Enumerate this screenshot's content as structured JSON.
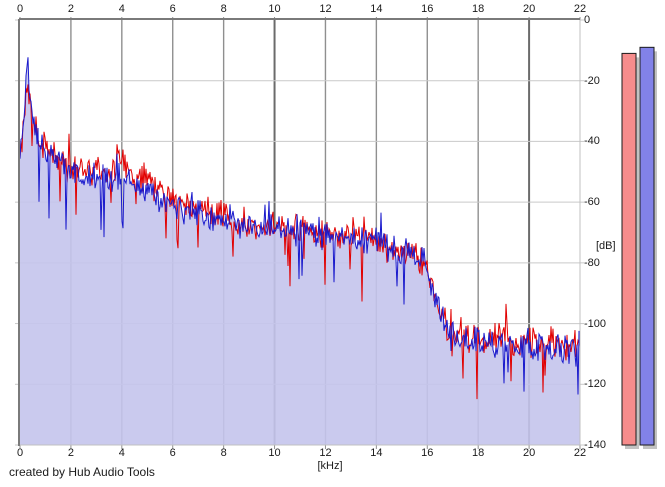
{
  "app": {
    "credit": "created by Hub Audio Tools"
  },
  "chart_data": {
    "type": "line",
    "title": "",
    "xlabel": "[kHz]",
    "ylabel": "[dB]",
    "xlim": [
      0,
      22
    ],
    "ylim": [
      -140,
      0
    ],
    "grid": true,
    "x_ticks": [
      0,
      2,
      4,
      6,
      8,
      10,
      12,
      14,
      16,
      18,
      20,
      22
    ],
    "x_major_ticks": [
      10,
      20
    ],
    "y_ticks": [
      0,
      -20,
      -40,
      -60,
      -80,
      -100,
      -120,
      -140
    ],
    "colors": {
      "red_trace": "#e10000",
      "blue_trace": "#1a1acc",
      "area_fill": "#c4c4ec",
      "grid_vertical": "#8f8f8f",
      "grid_vertical_major": "#6b6b6b",
      "grid_horizontal": "#c9c9c9",
      "frame_dark": "#7a7a7a",
      "frame_light": "#c0c0c0",
      "meter_shadow": "#c2c2c2",
      "meter_border": "#1a1a1a"
    },
    "series": [
      {
        "name": "red-spectrum-trace",
        "color": "#e10000",
        "noise_db": 6,
        "seed": 42,
        "envelope": [
          [
            0,
            -46
          ],
          [
            0.15,
            -33
          ],
          [
            0.3,
            -22
          ],
          [
            0.5,
            -34
          ],
          [
            0.8,
            -41
          ],
          [
            1,
            -42
          ],
          [
            1.5,
            -45
          ],
          [
            2,
            -47
          ],
          [
            2.5,
            -49
          ],
          [
            3,
            -50
          ],
          [
            3.5,
            -51
          ],
          [
            4,
            -47
          ],
          [
            4.5,
            -52
          ],
          [
            5,
            -54
          ],
          [
            5.5,
            -56
          ],
          [
            6,
            -58
          ],
          [
            6.5,
            -61
          ],
          [
            7,
            -62
          ],
          [
            7.5,
            -64
          ],
          [
            8,
            -65
          ],
          [
            8.5,
            -66
          ],
          [
            9,
            -67
          ],
          [
            9.5,
            -67
          ],
          [
            10,
            -68
          ],
          [
            11,
            -69
          ],
          [
            12,
            -70
          ],
          [
            13,
            -71
          ],
          [
            14,
            -73
          ],
          [
            14.5,
            -75
          ],
          [
            15,
            -76
          ],
          [
            15.5,
            -78
          ],
          [
            15.9,
            -80
          ],
          [
            16.2,
            -87
          ],
          [
            16.5,
            -96
          ],
          [
            16.8,
            -102
          ],
          [
            17,
            -104
          ],
          [
            18,
            -105
          ],
          [
            19,
            -105
          ],
          [
            20,
            -106
          ],
          [
            21,
            -106
          ],
          [
            22,
            -108
          ]
        ]
      },
      {
        "name": "blue-spectrum-trace",
        "color": "#1a1acc",
        "fill": "#c4c4ec",
        "fill_opacity": 0.9,
        "noise_db": 6,
        "seed": 1337,
        "envelope": [
          [
            0,
            -44
          ],
          [
            0.15,
            -30
          ],
          [
            0.3,
            -15
          ],
          [
            0.5,
            -33
          ],
          [
            0.8,
            -41
          ],
          [
            1,
            -43
          ],
          [
            1.5,
            -46
          ],
          [
            2,
            -49
          ],
          [
            2.5,
            -51
          ],
          [
            3,
            -53
          ],
          [
            3.5,
            -53
          ],
          [
            4,
            -52
          ],
          [
            4.5,
            -55
          ],
          [
            5,
            -56
          ],
          [
            5.5,
            -58
          ],
          [
            6,
            -60
          ],
          [
            6.5,
            -62
          ],
          [
            7,
            -63
          ],
          [
            7.5,
            -65
          ],
          [
            8,
            -66
          ],
          [
            8.5,
            -67
          ],
          [
            9,
            -68
          ],
          [
            9.5,
            -69
          ],
          [
            10,
            -69
          ],
          [
            11,
            -70
          ],
          [
            12,
            -71
          ],
          [
            13,
            -72
          ],
          [
            14,
            -74
          ],
          [
            14.5,
            -75
          ],
          [
            15,
            -77
          ],
          [
            15.5,
            -78
          ],
          [
            15.9,
            -81
          ],
          [
            16.2,
            -88
          ],
          [
            16.5,
            -97
          ],
          [
            16.8,
            -103
          ],
          [
            17,
            -105
          ],
          [
            18,
            -106
          ],
          [
            19,
            -106
          ],
          [
            20,
            -107
          ],
          [
            21,
            -107
          ],
          [
            22,
            -109
          ]
        ]
      }
    ],
    "meters": [
      {
        "name": "level-meter-left",
        "color": "#f68c8c",
        "value_db": -11
      },
      {
        "name": "level-meter-right",
        "color": "#8282e8",
        "value_db": -9
      }
    ]
  }
}
